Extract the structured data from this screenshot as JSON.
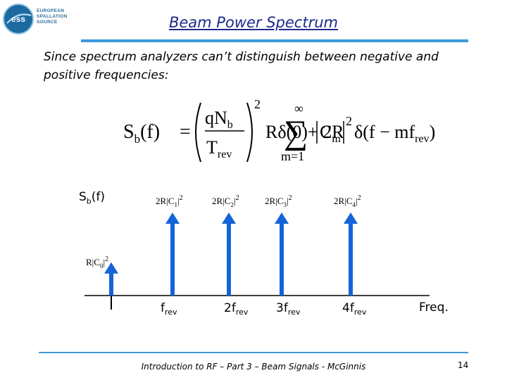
{
  "logo": {
    "mark": "ess",
    "line1": "EUROPEAN",
    "line2": "SPALLATION",
    "line3": "SOURCE"
  },
  "title": "Beam Power Spectrum",
  "intro": "Since spectrum analyzers can’t distinguish between negative and positive frequencies:",
  "formula": {
    "lhs_S": "S",
    "lhs_sub": "b",
    "lhs_arg": "(f)",
    "eq": "=",
    "num": "qN",
    "num_sub": "b",
    "den": "T",
    "den_sub": "rev",
    "power": "2",
    "term1": "Rδ(0)+ 2R",
    "sum_top": "∞",
    "sum_bottom": "m=1",
    "C": "C",
    "C_sub": "m",
    "C_pow": "2",
    "delta": "δ(f − mf",
    "delta_sub": "rev",
    "delta_close": ")"
  },
  "axis_label": "S",
  "axis_label_sub": "b",
  "axis_label_arg": "(f)",
  "lines": [
    {
      "label": "R|C",
      "label_sub": "0",
      "label_pow": "2",
      "height": 0.4
    },
    {
      "label": "2R|C",
      "label_sub": "1",
      "label_pow": "2",
      "height": 1.0
    },
    {
      "label": "2R|C",
      "label_sub": "2",
      "label_pow": "2",
      "height": 1.0
    },
    {
      "label": "2R|C",
      "label_sub": "3",
      "label_pow": "2",
      "height": 1.0
    },
    {
      "label": "2R|C",
      "label_sub": "4",
      "label_pow": "2",
      "height": 1.0
    }
  ],
  "ticks": [
    {
      "coef": "",
      "base": "f",
      "sub": "rev"
    },
    {
      "coef": "2",
      "base": "f",
      "sub": "rev"
    },
    {
      "coef": "3",
      "base": "f",
      "sub": "rev"
    },
    {
      "coef": "4",
      "base": "f",
      "sub": "rev"
    }
  ],
  "freq_label": "Freq.",
  "footer": "Introduction to RF – Part 3 – Beam Signals - McGinnis",
  "page_number": "14",
  "colors": {
    "title": "#1d2a8a",
    "rule": "#3a9ad9",
    "arrow": "#1464d8"
  }
}
